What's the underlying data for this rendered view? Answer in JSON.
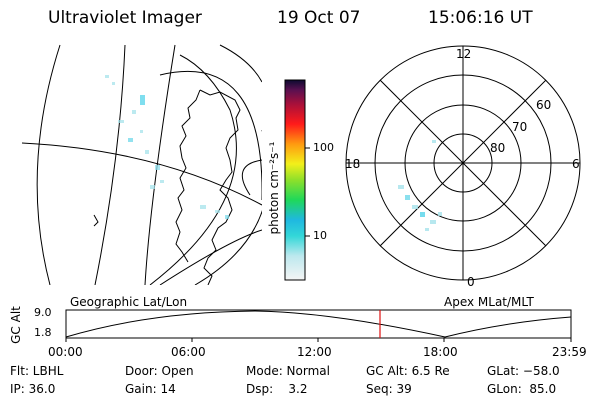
{
  "header": {
    "instrument": "Ultraviolet Imager",
    "date": "19 Oct 07",
    "time": "15:06:16 UT"
  },
  "colorbar": {
    "unit_label": "photon cm⁻²s⁻¹",
    "tick_100": "100",
    "tick_10": "10"
  },
  "polar_plot": {
    "mlt_labels": {
      "top": "12",
      "left": "18",
      "right": "6",
      "bottom": "0"
    },
    "lat_labels": [
      "60",
      "70",
      "80"
    ]
  },
  "altitude_plot": {
    "left_title": "Geographic Lat/Lon",
    "right_title": "Apex MLat/MLT",
    "axis_label": "GC Alt",
    "y_ticks": [
      "9.0",
      "1.8"
    ],
    "x_ticks": [
      "00:00",
      "06:00",
      "12:00",
      "18:00",
      "23:59"
    ]
  },
  "status": {
    "col1": [
      "Flt: LBHL",
      "IP: 36.0"
    ],
    "col2": [
      "Door: Open",
      "Gain: 14"
    ],
    "col3": [
      "Mode: Normal",
      "Dsp:    3.2"
    ],
    "col4": [
      "GC Alt: 6.5 Re",
      "Seq: 39"
    ],
    "col5": [
      "GLat: −58.0",
      "GLon:  85.0"
    ]
  }
}
